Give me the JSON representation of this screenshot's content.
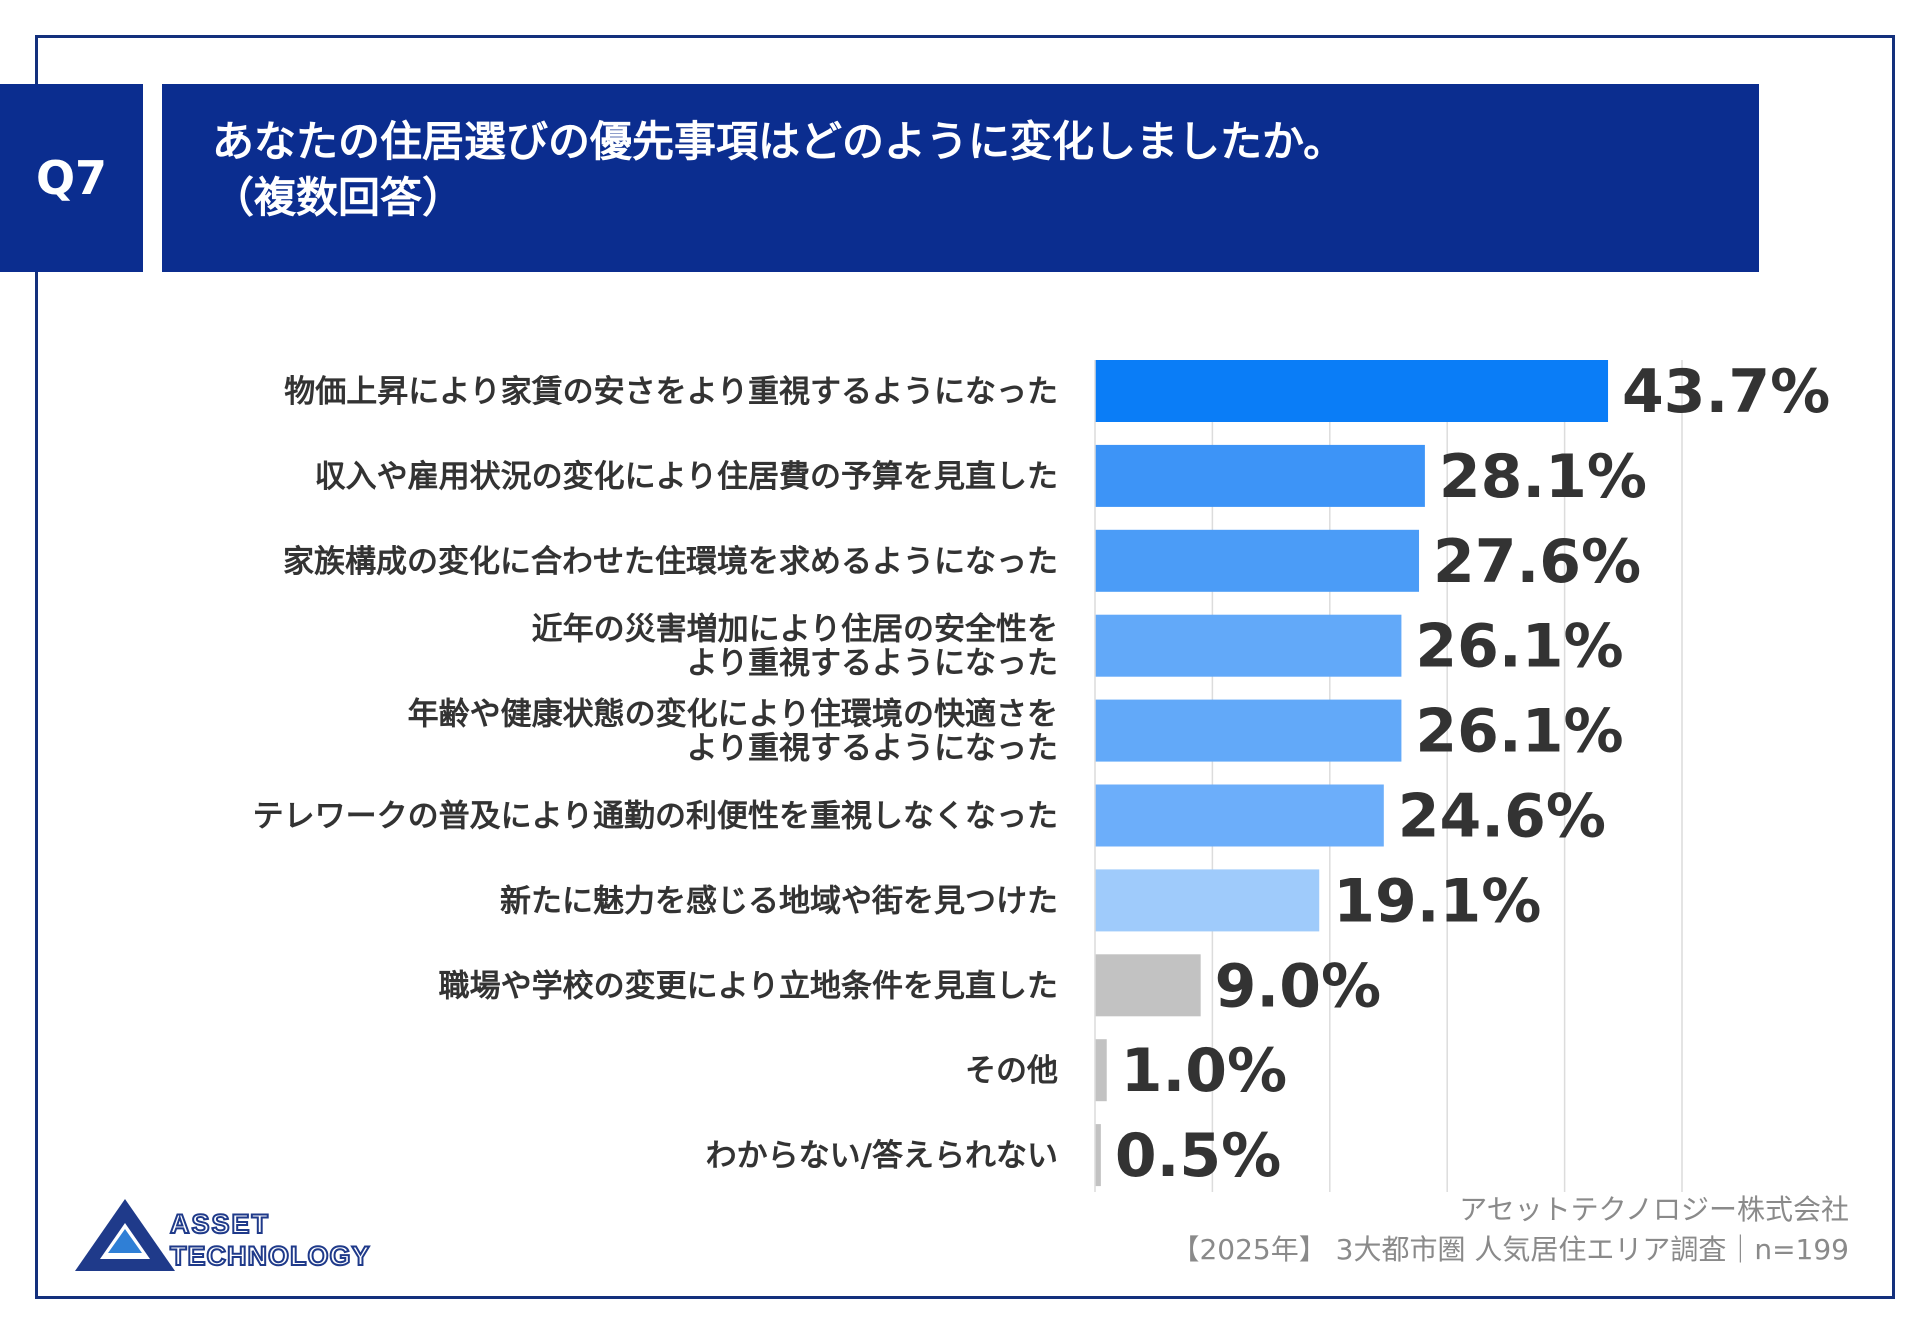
{
  "question_badge": "Q7",
  "title": {
    "line1": "あなたの住居選びの優先事項はどのように変化しましたか。",
    "line2": "（複数回答）"
  },
  "chart_data": {
    "type": "bar",
    "orientation": "horizontal",
    "categories": [
      [
        "物価上昇により家賃の安さをより重視するようになった"
      ],
      [
        "収入や雇用状況の変化により住居費の予算を見直した"
      ],
      [
        "家族構成の変化に合わせた住環境を求めるようになった"
      ],
      [
        "近年の災害増加により住居の安全性を",
        "より重視するようになった"
      ],
      [
        "年齢や健康状態の変化により住環境の快適さを",
        "より重視するようになった"
      ],
      [
        "テレワークの普及により通勤の利便性を重視しなくなった"
      ],
      [
        "新たに魅力を感じる地域や街を見つけた"
      ],
      [
        "職場や学校の変更により立地条件を見直した"
      ],
      [
        "その他"
      ],
      [
        "わからない/答えられない"
      ]
    ],
    "values": [
      43.7,
      28.1,
      27.6,
      26.1,
      26.1,
      24.6,
      19.1,
      9.0,
      1.0,
      0.5
    ],
    "value_labels": [
      "43.7%",
      "28.1%",
      "27.6%",
      "26.1%",
      "26.1%",
      "24.6%",
      "19.1%",
      "9.0%",
      "1.0%",
      "0.5%"
    ],
    "bar_colors": [
      "#0a7df7",
      "#3d94f7",
      "#4b9cf7",
      "#62a9f9",
      "#62a9f9",
      "#6caefa",
      "#9fcbfb",
      "#c2c2c2",
      "#c2c2c2",
      "#c2c2c2"
    ],
    "xlim": [
      0,
      50
    ],
    "grid": true
  },
  "logo": {
    "line1": "ASSET",
    "line2": "TECHNOLOGY"
  },
  "footer": {
    "company": "アセットテクノロジー株式会社",
    "survey": "【2025年】 3大都市圏 人気居住エリア調査｜n=199"
  }
}
